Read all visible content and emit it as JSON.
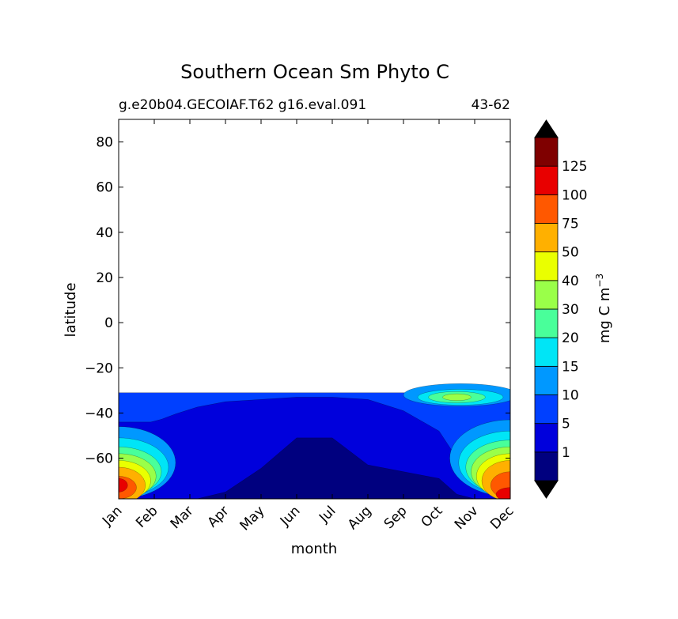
{
  "chart_data": {
    "type": "contourf",
    "title": "Southern Ocean Sm Phyto C",
    "subtitle_left": "g.e20b04.GECOIAF.T62 g16.eval.091",
    "subtitle_right": "43-62",
    "xlabel": "month",
    "ylabel": "latitude",
    "colorbar_label": "mg C m",
    "colorbar_label_exponent": "−3",
    "x_ticks": [
      "Jan",
      "Feb",
      "Mar",
      "Apr",
      "May",
      "Jun",
      "Jul",
      "Aug",
      "Sep",
      "Oct",
      "Nov",
      "Dec"
    ],
    "y_ticks": [
      "80",
      "60",
      "40",
      "20",
      "0",
      "−20",
      "−40",
      "−60"
    ],
    "y_tick_values": [
      80,
      60,
      40,
      20,
      0,
      -20,
      -40,
      -60
    ],
    "ylim": [
      -78,
      90
    ],
    "data_lat_range": [
      -78,
      -31
    ],
    "levels": [
      "1",
      "5",
      "10",
      "15",
      "20",
      "30",
      "40",
      "50",
      "75",
      "100",
      "125"
    ],
    "colormap": [
      "#00007f",
      "#0000dc",
      "#0040ff",
      "#0098ff",
      "#00e5f6",
      "#49ff9a",
      "#9aff49",
      "#eaff00",
      "#ffb000",
      "#ff5800",
      "#e80000",
      "#7f0000"
    ],
    "extend": "both",
    "extend_min_color": "#000000",
    "extend_max_color": "#000000",
    "grid": false
  }
}
